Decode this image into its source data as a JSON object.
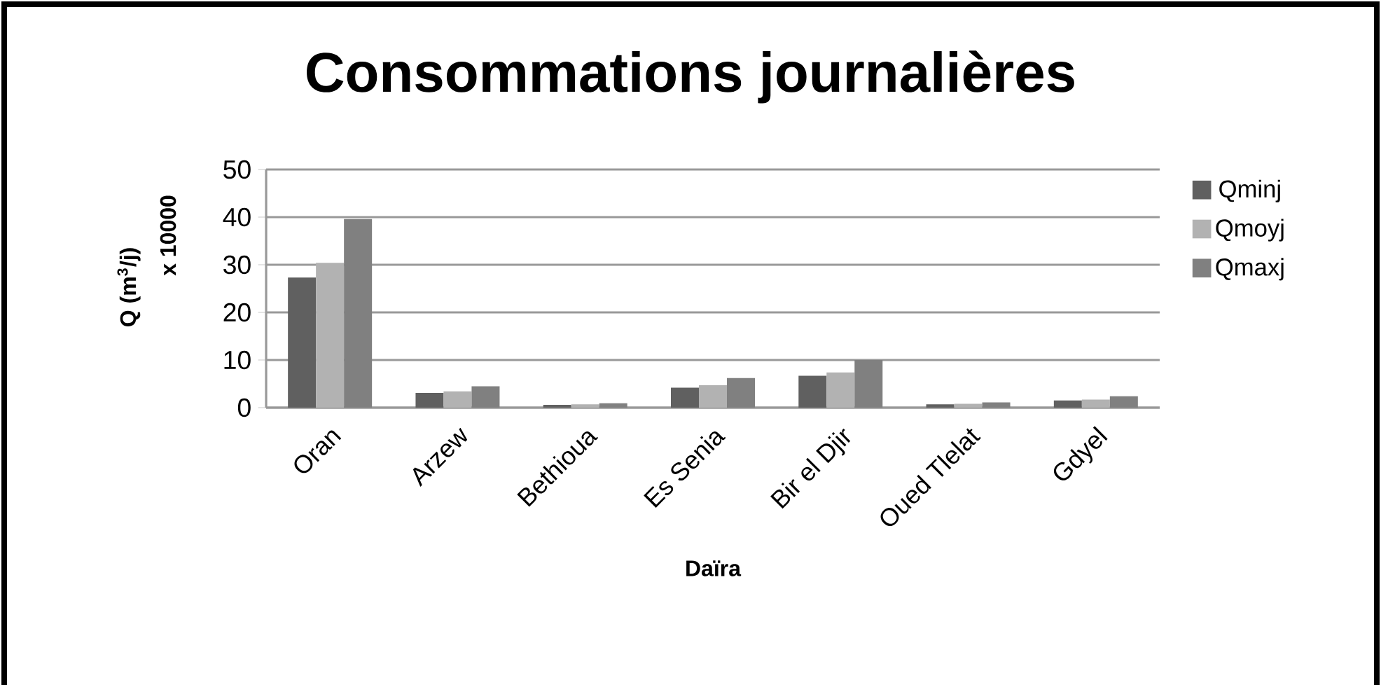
{
  "chart_data": {
    "type": "bar",
    "title": "Consommations journalières",
    "xlabel": "Daïra",
    "ylabel": "Q (m$^{3}$/j)",
    "annotations": [
      "x 10000"
    ],
    "categories": [
      "Oran",
      "Arzew",
      "Bethioua",
      "Es Senia",
      "Bir el Djir",
      "Oued Tlelat",
      "Gdyel"
    ],
    "series": [
      {
        "name": "Qminj",
        "color": "#606060",
        "values": [
          27.3,
          3.1,
          0.6,
          4.2,
          6.7,
          0.7,
          1.5
        ]
      },
      {
        "name": "Qmoyj",
        "color": "#b2b2b2",
        "values": [
          30.4,
          3.4,
          0.7,
          4.7,
          7.4,
          0.8,
          1.7
        ]
      },
      {
        "name": "Qmaxj",
        "color": "#808080",
        "values": [
          39.6,
          4.5,
          0.9,
          6.2,
          10,
          1.1,
          2.4
        ]
      }
    ],
    "ylim": [
      0,
      50
    ],
    "yticks": [
      0,
      10,
      20,
      30,
      40,
      50
    ],
    "grid": "y",
    "legend": "right"
  }
}
